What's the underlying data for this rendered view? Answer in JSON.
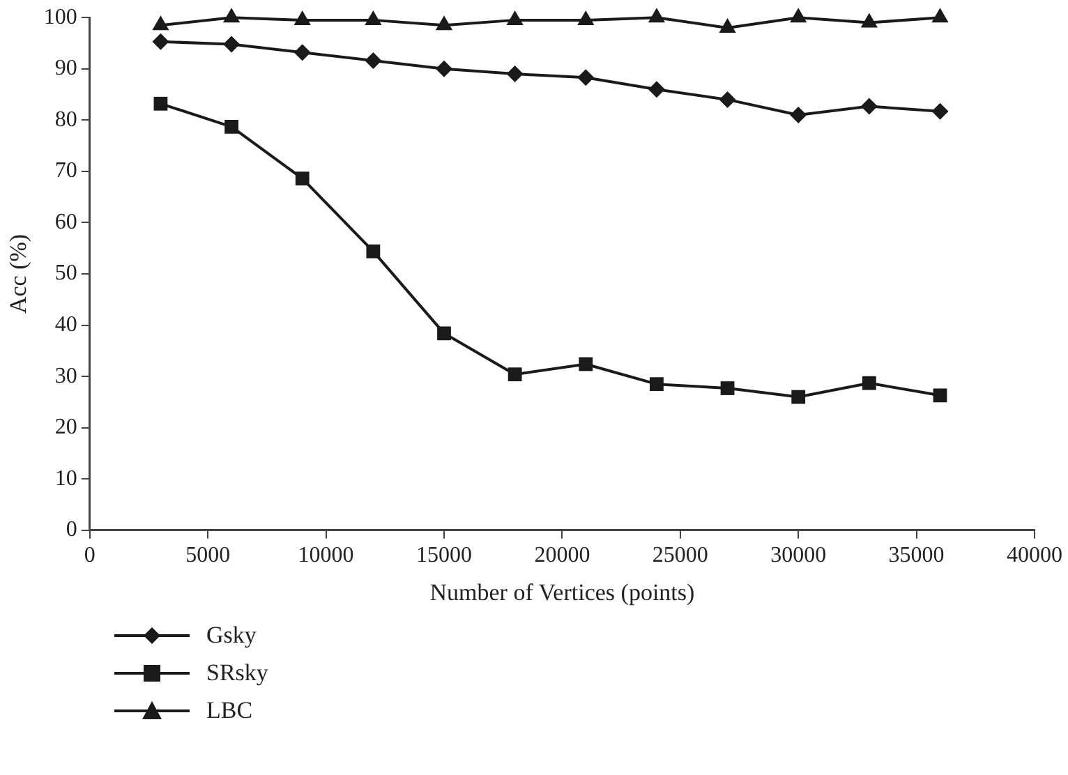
{
  "chart_data": {
    "type": "line",
    "xlabel": "Number of Vertices (points)",
    "ylabel": "Acc (%)",
    "x": [
      3000,
      6000,
      9000,
      12000,
      15000,
      18000,
      21000,
      24000,
      27000,
      30000,
      33000,
      36000
    ],
    "series": [
      {
        "name": "Gsky",
        "color": "#1a1a1a",
        "marker": "diamond",
        "values": [
          95.3,
          94.8,
          93.2,
          91.6,
          90,
          89,
          88.3,
          86,
          84,
          81,
          82.7,
          81.7
        ]
      },
      {
        "name": "SRsky",
        "color": "#1a1a1a",
        "marker": "square",
        "values": [
          83.2,
          78.7,
          68.6,
          54.4,
          38.4,
          30.4,
          32.4,
          28.5,
          27.7,
          26,
          28.7,
          26.3
        ]
      },
      {
        "name": "LBC",
        "color": "#1a1a1a",
        "marker": "triangle",
        "values": [
          98.5,
          100,
          99.5,
          99.5,
          98.5,
          99.5,
          99.5,
          100,
          98,
          100,
          99,
          100
        ]
      }
    ],
    "xlim": [
      0,
      40000
    ],
    "xticks": [
      0,
      5000,
      10000,
      15000,
      20000,
      25000,
      30000,
      35000,
      40000
    ],
    "ylim": [
      0,
      100
    ],
    "yticks": [
      0,
      10,
      20,
      30,
      40,
      50,
      60,
      70,
      80,
      90,
      100
    ],
    "grid": false,
    "legend": "bottom left",
    "line_style": "solid"
  }
}
